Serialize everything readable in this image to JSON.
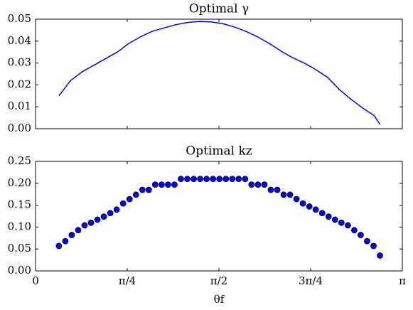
{
  "chart_data": [
    {
      "type": "line",
      "title": "Optimal γ",
      "x": [
        0.2,
        0.3,
        0.4,
        0.5,
        0.6,
        0.7,
        0.8,
        0.9,
        1.0,
        1.1,
        1.2,
        1.3,
        1.4,
        1.5,
        1.6,
        1.7,
        1.8,
        1.9,
        2.0,
        2.1,
        2.2,
        2.3,
        2.4,
        2.5,
        2.6,
        2.7,
        2.8,
        2.9,
        2.95
      ],
      "series": [
        {
          "color": "#0000ff",
          "values": [
            0.015,
            0.022,
            0.026,
            0.029,
            0.032,
            0.035,
            0.039,
            0.042,
            0.0445,
            0.046,
            0.0475,
            0.0485,
            0.049,
            0.0488,
            0.048,
            0.0465,
            0.0445,
            0.042,
            0.039,
            0.0355,
            0.0325,
            0.03,
            0.027,
            0.0235,
            0.018,
            0.0135,
            0.0095,
            0.006,
            0.002
          ]
        }
      ],
      "xlim": [
        0,
        3.1416
      ],
      "xticks": [
        0,
        0.7854,
        1.5708,
        2.3562,
        3.1416
      ],
      "ylim": [
        0,
        0.05
      ],
      "yticks": [
        {
          "value": 0,
          "label": "0.00"
        },
        0.01,
        0.02,
        0.03,
        0.04,
        0.05
      ]
    },
    {
      "type": "scatter",
      "title": "Optimal kz",
      "xlabel": "θf",
      "x": [
        0.2,
        0.255,
        0.31,
        0.365,
        0.42,
        0.475,
        0.53,
        0.585,
        0.64,
        0.695,
        0.75,
        0.805,
        0.86,
        0.915,
        0.97,
        1.025,
        1.08,
        1.135,
        1.19,
        1.245,
        1.3,
        1.355,
        1.41,
        1.465,
        1.52,
        1.575,
        1.63,
        1.685,
        1.74,
        1.795,
        1.85,
        1.905,
        1.96,
        2.015,
        2.07,
        2.125,
        2.18,
        2.235,
        2.29,
        2.345,
        2.4,
        2.455,
        2.51,
        2.565,
        2.62,
        2.675,
        2.73,
        2.785,
        2.84,
        2.895,
        2.95
      ],
      "series": [
        {
          "color": "#0000ff",
          "values": [
            0.057,
            0.068,
            0.082,
            0.093,
            0.104,
            0.11,
            0.117,
            0.124,
            0.132,
            0.14,
            0.154,
            0.164,
            0.174,
            0.185,
            0.185,
            0.197,
            0.197,
            0.197,
            0.197,
            0.21,
            0.21,
            0.21,
            0.21,
            0.21,
            0.21,
            0.21,
            0.21,
            0.21,
            0.21,
            0.21,
            0.197,
            0.197,
            0.197,
            0.185,
            0.185,
            0.174,
            0.174,
            0.164,
            0.154,
            0.147,
            0.14,
            0.132,
            0.124,
            0.117,
            0.11,
            0.104,
            0.093,
            0.082,
            0.068,
            0.057,
            0.035
          ]
        }
      ],
      "xlim": [
        0,
        3.1416
      ],
      "xticks": [
        0,
        {
          "value": 0.7854,
          "label": "π/4"
        },
        {
          "value": 1.5708,
          "label": "π/2"
        },
        {
          "value": 2.3562,
          "label": "3π/4"
        },
        {
          "value": 3.1416,
          "label": "π"
        }
      ],
      "ylim": [
        0,
        0.25
      ],
      "yticks": [
        {
          "value": 0,
          "label": "0.00"
        },
        0.05,
        {
          "value": 0.1,
          "label": "0.10"
        },
        0.15,
        {
          "value": 0.2,
          "label": "0.20"
        },
        0.25
      ]
    }
  ]
}
